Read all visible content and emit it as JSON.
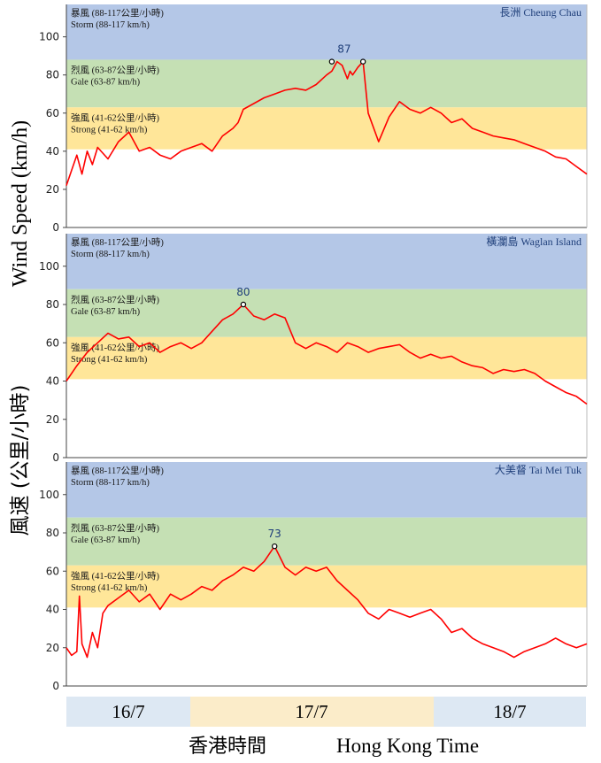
{
  "y_axis_label_en": "Wind Speed (km/h)",
  "y_axis_label_zh": "風速 (公里/小時)",
  "x_axis_label_zh": "香港時間",
  "x_axis_label_en": "Hong Kong Time",
  "date_segments": [
    {
      "label": "16/7",
      "color": "#dde8f3"
    },
    {
      "label": "17/7",
      "color": "#fbecc9"
    },
    {
      "label": "18/7",
      "color": "#dde8f3"
    }
  ],
  "band_labels": {
    "storm": [
      "暴風 (88-117公里/小時)",
      "Storm (88-117 km/h)"
    ],
    "gale": [
      "烈風 (63-87公里/小時)",
      "Gale (63-87 km/h)"
    ],
    "strong": [
      "強風 (41-62公里/小時)",
      "Strong (41-62 km/h)"
    ]
  },
  "colors": {
    "storm": "#b4c7e7",
    "gale": "#c5e0b4",
    "strong": "#ffe699",
    "line": "#ff0000"
  },
  "chart_data": [
    {
      "type": "line",
      "station": "長洲 Cheung Chau",
      "ylim": [
        0,
        110
      ],
      "yticks": [
        0,
        20,
        40,
        60,
        80,
        100
      ],
      "bands": [
        [
          88,
          117
        ],
        [
          63,
          87
        ],
        [
          41,
          62
        ]
      ],
      "peak_labels": [
        {
          "value": 87,
          "label": "87"
        }
      ],
      "series": [
        {
          "x": [
            0,
            0.01,
            0.02,
            0.03,
            0.04,
            0.05,
            0.06,
            0.08,
            0.1,
            0.12,
            0.14,
            0.16,
            0.18,
            0.2,
            0.22,
            0.24,
            0.26,
            0.28,
            0.3,
            0.32,
            0.33,
            0.34,
            0.36,
            0.38,
            0.4,
            0.42,
            0.44,
            0.46,
            0.48,
            0.5,
            0.51,
            0.52,
            0.53,
            0.54,
            0.545,
            0.55,
            0.56,
            0.57,
            0.58,
            0.6,
            0.62,
            0.64,
            0.66,
            0.68,
            0.7,
            0.72,
            0.74,
            0.76,
            0.78,
            0.8,
            0.82,
            0.84,
            0.86,
            0.88,
            0.9,
            0.92,
            0.94,
            0.96,
            0.98,
            1.0
          ],
          "values": [
            22,
            30,
            38,
            28,
            40,
            33,
            42,
            36,
            45,
            50,
            40,
            42,
            38,
            36,
            40,
            42,
            44,
            40,
            48,
            52,
            55,
            62,
            65,
            68,
            70,
            72,
            73,
            72,
            75,
            80,
            82,
            87,
            85,
            78,
            82,
            80,
            84,
            87,
            60,
            45,
            58,
            66,
            62,
            60,
            63,
            60,
            55,
            57,
            52,
            50,
            48,
            47,
            46,
            44,
            42,
            40,
            37,
            36,
            32,
            28
          ],
          "marker": [
            {
              "x": 0.51,
              "y": 87
            },
            {
              "x": 0.57,
              "y": 87
            }
          ]
        }
      ]
    },
    {
      "type": "line",
      "station": "橫瀾島 Waglan Island",
      "ylim": [
        0,
        110
      ],
      "yticks": [
        0,
        20,
        40,
        60,
        80,
        100
      ],
      "bands": [
        [
          88,
          117
        ],
        [
          63,
          87
        ],
        [
          41,
          62
        ]
      ],
      "peak_labels": [
        {
          "value": 80,
          "label": "80"
        }
      ],
      "series": [
        {
          "x": [
            0,
            0.02,
            0.04,
            0.06,
            0.08,
            0.1,
            0.12,
            0.14,
            0.16,
            0.18,
            0.2,
            0.22,
            0.24,
            0.26,
            0.28,
            0.3,
            0.32,
            0.34,
            0.36,
            0.38,
            0.4,
            0.42,
            0.44,
            0.46,
            0.48,
            0.5,
            0.52,
            0.54,
            0.56,
            0.58,
            0.6,
            0.62,
            0.64,
            0.66,
            0.68,
            0.7,
            0.72,
            0.74,
            0.76,
            0.78,
            0.8,
            0.82,
            0.84,
            0.86,
            0.88,
            0.9,
            0.92,
            0.94,
            0.96,
            0.98,
            1.0
          ],
          "values": [
            40,
            48,
            55,
            60,
            65,
            62,
            63,
            58,
            60,
            55,
            58,
            60,
            57,
            60,
            66,
            72,
            75,
            80,
            74,
            72,
            75,
            73,
            60,
            57,
            60,
            58,
            55,
            60,
            58,
            55,
            57,
            58,
            59,
            55,
            52,
            54,
            52,
            53,
            50,
            48,
            47,
            44,
            46,
            45,
            46,
            44,
            40,
            37,
            34,
            32,
            28
          ],
          "marker": [
            {
              "x": 0.34,
              "y": 80
            }
          ]
        }
      ]
    },
    {
      "type": "line",
      "station": "大美督 Tai Mei Tuk",
      "ylim": [
        0,
        110
      ],
      "yticks": [
        0,
        20,
        40,
        60,
        80,
        100
      ],
      "bands": [
        [
          88,
          117
        ],
        [
          63,
          87
        ],
        [
          41,
          62
        ]
      ],
      "peak_labels": [
        {
          "value": 73,
          "label": "73"
        }
      ],
      "series": [
        {
          "x": [
            0,
            0.01,
            0.02,
            0.025,
            0.03,
            0.04,
            0.05,
            0.06,
            0.07,
            0.08,
            0.1,
            0.12,
            0.14,
            0.16,
            0.18,
            0.2,
            0.22,
            0.24,
            0.26,
            0.28,
            0.3,
            0.32,
            0.34,
            0.36,
            0.38,
            0.4,
            0.42,
            0.44,
            0.46,
            0.48,
            0.5,
            0.52,
            0.54,
            0.56,
            0.58,
            0.6,
            0.62,
            0.64,
            0.66,
            0.68,
            0.7,
            0.72,
            0.74,
            0.76,
            0.78,
            0.8,
            0.82,
            0.84,
            0.86,
            0.88,
            0.9,
            0.92,
            0.94,
            0.96,
            0.98,
            1.0
          ],
          "values": [
            20,
            16,
            18,
            47,
            22,
            15,
            28,
            20,
            38,
            42,
            46,
            50,
            44,
            48,
            40,
            48,
            45,
            48,
            52,
            50,
            55,
            58,
            62,
            60,
            65,
            73,
            62,
            58,
            62,
            60,
            62,
            55,
            50,
            45,
            38,
            35,
            40,
            38,
            36,
            38,
            40,
            35,
            28,
            30,
            25,
            22,
            20,
            18,
            15,
            18,
            20,
            22,
            25,
            22,
            20,
            22
          ],
          "marker": [
            {
              "x": 0.4,
              "y": 73
            }
          ]
        }
      ]
    }
  ]
}
